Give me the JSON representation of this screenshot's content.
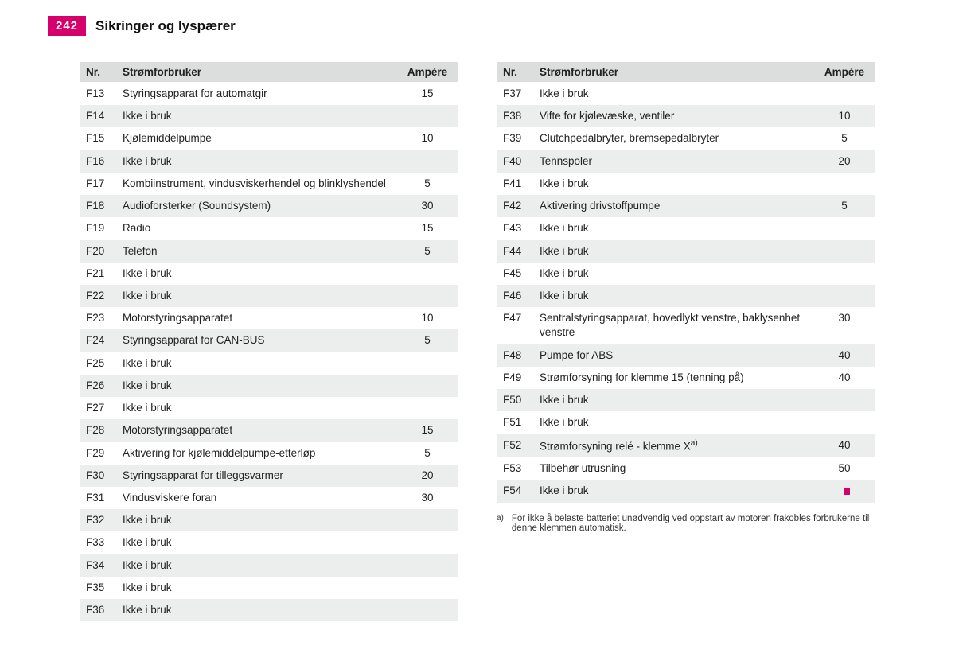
{
  "page_number": "242",
  "page_title": "Sikringer og lyspærer",
  "columns_header": {
    "nr": "Nr.",
    "desc": "Strømforbruker",
    "amp": "Ampère"
  },
  "left_rows": [
    {
      "nr": "F13",
      "desc": "Styringsapparat for automatgir",
      "amp": "15"
    },
    {
      "nr": "F14",
      "desc": "Ikke i bruk",
      "amp": ""
    },
    {
      "nr": "F15",
      "desc": "Kjølemiddelpumpe",
      "amp": "10"
    },
    {
      "nr": "F16",
      "desc": "Ikke i bruk",
      "amp": ""
    },
    {
      "nr": "F17",
      "desc": "Kombiinstrument, vindusviskerhendel og blinklyshendel",
      "amp": "5"
    },
    {
      "nr": "F18",
      "desc": "Audioforsterker (Soundsystem)",
      "amp": "30"
    },
    {
      "nr": "F19",
      "desc": "Radio",
      "amp": "15"
    },
    {
      "nr": "F20",
      "desc": "Telefon",
      "amp": "5"
    },
    {
      "nr": "F21",
      "desc": "Ikke i bruk",
      "amp": ""
    },
    {
      "nr": "F22",
      "desc": "Ikke i bruk",
      "amp": ""
    },
    {
      "nr": "F23",
      "desc": "Motorstyringsapparatet",
      "amp": "10"
    },
    {
      "nr": "F24",
      "desc": "Styringsapparat for CAN-BUS",
      "amp": "5"
    },
    {
      "nr": "F25",
      "desc": "Ikke i bruk",
      "amp": ""
    },
    {
      "nr": "F26",
      "desc": "Ikke i bruk",
      "amp": ""
    },
    {
      "nr": "F27",
      "desc": "Ikke i bruk",
      "amp": ""
    },
    {
      "nr": "F28",
      "desc": "Motorstyringsapparatet",
      "amp": "15"
    },
    {
      "nr": "F29",
      "desc": "Aktivering for kjølemiddelpumpe-etterløp",
      "amp": "5"
    },
    {
      "nr": "F30",
      "desc": "Styringsapparat for tilleggsvarmer",
      "amp": "20"
    },
    {
      "nr": "F31",
      "desc": "Vindusviskere foran",
      "amp": "30"
    },
    {
      "nr": "F32",
      "desc": "Ikke i bruk",
      "amp": ""
    },
    {
      "nr": "F33",
      "desc": "Ikke i bruk",
      "amp": ""
    },
    {
      "nr": "F34",
      "desc": "Ikke i bruk",
      "amp": ""
    },
    {
      "nr": "F35",
      "desc": "Ikke i bruk",
      "amp": ""
    },
    {
      "nr": "F36",
      "desc": "Ikke i bruk",
      "amp": ""
    }
  ],
  "right_rows": [
    {
      "nr": "F37",
      "desc": "Ikke i bruk",
      "amp": ""
    },
    {
      "nr": "F38",
      "desc": "Vifte for kjølevæske, ventiler",
      "amp": "10"
    },
    {
      "nr": "F39",
      "desc": "Clutchpedalbryter, bremsepedalbryter",
      "amp": "5"
    },
    {
      "nr": "F40",
      "desc": "Tennspoler",
      "amp": "20"
    },
    {
      "nr": "F41",
      "desc": "Ikke i bruk",
      "amp": ""
    },
    {
      "nr": "F42",
      "desc": "Aktivering drivstoffpumpe",
      "amp": "5"
    },
    {
      "nr": "F43",
      "desc": "Ikke i bruk",
      "amp": ""
    },
    {
      "nr": "F44",
      "desc": "Ikke i bruk",
      "amp": ""
    },
    {
      "nr": "F45",
      "desc": "Ikke i bruk",
      "amp": ""
    },
    {
      "nr": "F46",
      "desc": "Ikke i bruk",
      "amp": ""
    },
    {
      "nr": "F47",
      "desc": "Sentralstyringsapparat, hovedlykt venstre, baklysenhet venstre",
      "amp": "30"
    },
    {
      "nr": "F48",
      "desc": "Pumpe for ABS",
      "amp": "40"
    },
    {
      "nr": "F49",
      "desc": "Strømforsyning for klemme 15 (tenning på)",
      "amp": "40"
    },
    {
      "nr": "F50",
      "desc": "Ikke i bruk",
      "amp": ""
    },
    {
      "nr": "F51",
      "desc": "Ikke i bruk",
      "amp": ""
    },
    {
      "nr": "F52",
      "desc": "Strømforsyning relé - klemme X",
      "amp": "40",
      "sup": "a)"
    },
    {
      "nr": "F53",
      "desc": "Tilbehør utrusning",
      "amp": "50"
    },
    {
      "nr": "F54",
      "desc": "Ikke i bruk",
      "amp": "",
      "endmark": true
    }
  ],
  "footnote": {
    "mark": "a)",
    "text": "For ikke å belaste batteriet unødvendig ved oppstart av motoren frakobles forbrukerne til denne klemmen automatisk."
  }
}
